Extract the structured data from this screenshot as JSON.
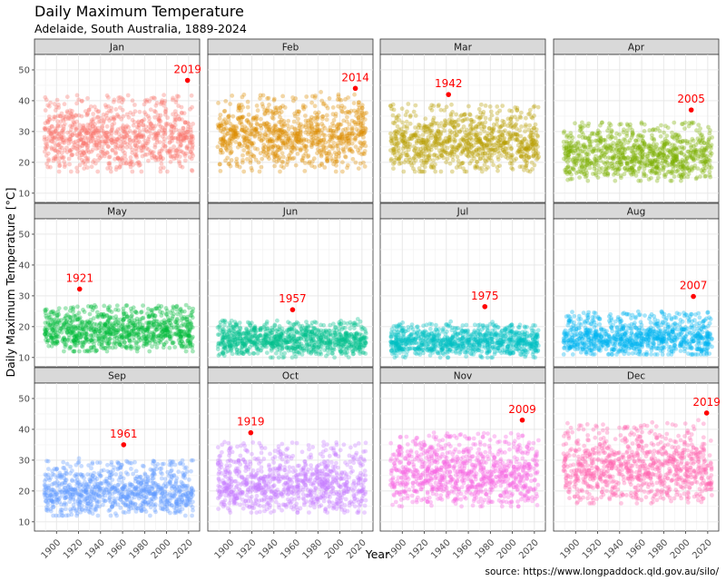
{
  "chart_data": {
    "type": "scatter",
    "title": "Daily Maximum Temperature",
    "subtitle": "Adelaide, South Australia, 1889-2024",
    "xlabel": "Year",
    "ylabel": "Daily Maximum Temperature [°C]",
    "caption": "source: https://www.longpaddock.qld.gov.au/silo/",
    "xlim": [
      1880,
      2030
    ],
    "ylim": [
      7,
      55
    ],
    "x_ticks": [
      1900,
      1920,
      1940,
      1960,
      1980,
      2000,
      2020
    ],
    "y_ticks": [
      10,
      20,
      30,
      40,
      50
    ],
    "record_color": "#ff0000",
    "panels": [
      {
        "month": "Jan",
        "color": "#F8766D",
        "lo": 17,
        "hi": 43,
        "mid": 28,
        "record_year": 2019,
        "record_temp": 46.6
      },
      {
        "month": "Feb",
        "color": "#DE8C00",
        "lo": 17,
        "hi": 43,
        "mid": 28,
        "record_year": 2014,
        "record_temp": 44.0
      },
      {
        "month": "Mar",
        "color": "#B79F00",
        "lo": 17,
        "hi": 40,
        "mid": 26,
        "record_year": 1942,
        "record_temp": 42.0
      },
      {
        "month": "Apr",
        "color": "#7CAE00",
        "lo": 14,
        "hi": 34,
        "mid": 22,
        "record_year": 2005,
        "record_temp": 37.0
      },
      {
        "month": "May",
        "color": "#00BA38",
        "lo": 12,
        "hi": 28,
        "mid": 18,
        "record_year": 1921,
        "record_temp": 32.2
      },
      {
        "month": "Jun",
        "color": "#00C08B",
        "lo": 10,
        "hi": 23,
        "mid": 15.5,
        "record_year": 1957,
        "record_temp": 25.5
      },
      {
        "month": "Jul",
        "color": "#00BFC4",
        "lo": 10,
        "hi": 22,
        "mid": 15,
        "record_year": 1975,
        "record_temp": 26.5
      },
      {
        "month": "Aug",
        "color": "#00B4F0",
        "lo": 11,
        "hi": 26,
        "mid": 16,
        "record_year": 2007,
        "record_temp": 29.8
      },
      {
        "month": "Sep",
        "color": "#619CFF",
        "lo": 12,
        "hi": 31,
        "mid": 19,
        "record_year": 1961,
        "record_temp": 35.0
      },
      {
        "month": "Oct",
        "color": "#C77CFF",
        "lo": 13,
        "hi": 37,
        "mid": 22,
        "record_year": 1919,
        "record_temp": 38.9
      },
      {
        "month": "Nov",
        "color": "#F564E3",
        "lo": 15,
        "hi": 40,
        "mid": 25,
        "record_year": 2009,
        "record_temp": 43.0
      },
      {
        "month": "Dec",
        "color": "#FF64B0",
        "lo": 16,
        "hi": 43,
        "mid": 27,
        "record_year": 2019,
        "record_temp": 45.3
      }
    ]
  }
}
